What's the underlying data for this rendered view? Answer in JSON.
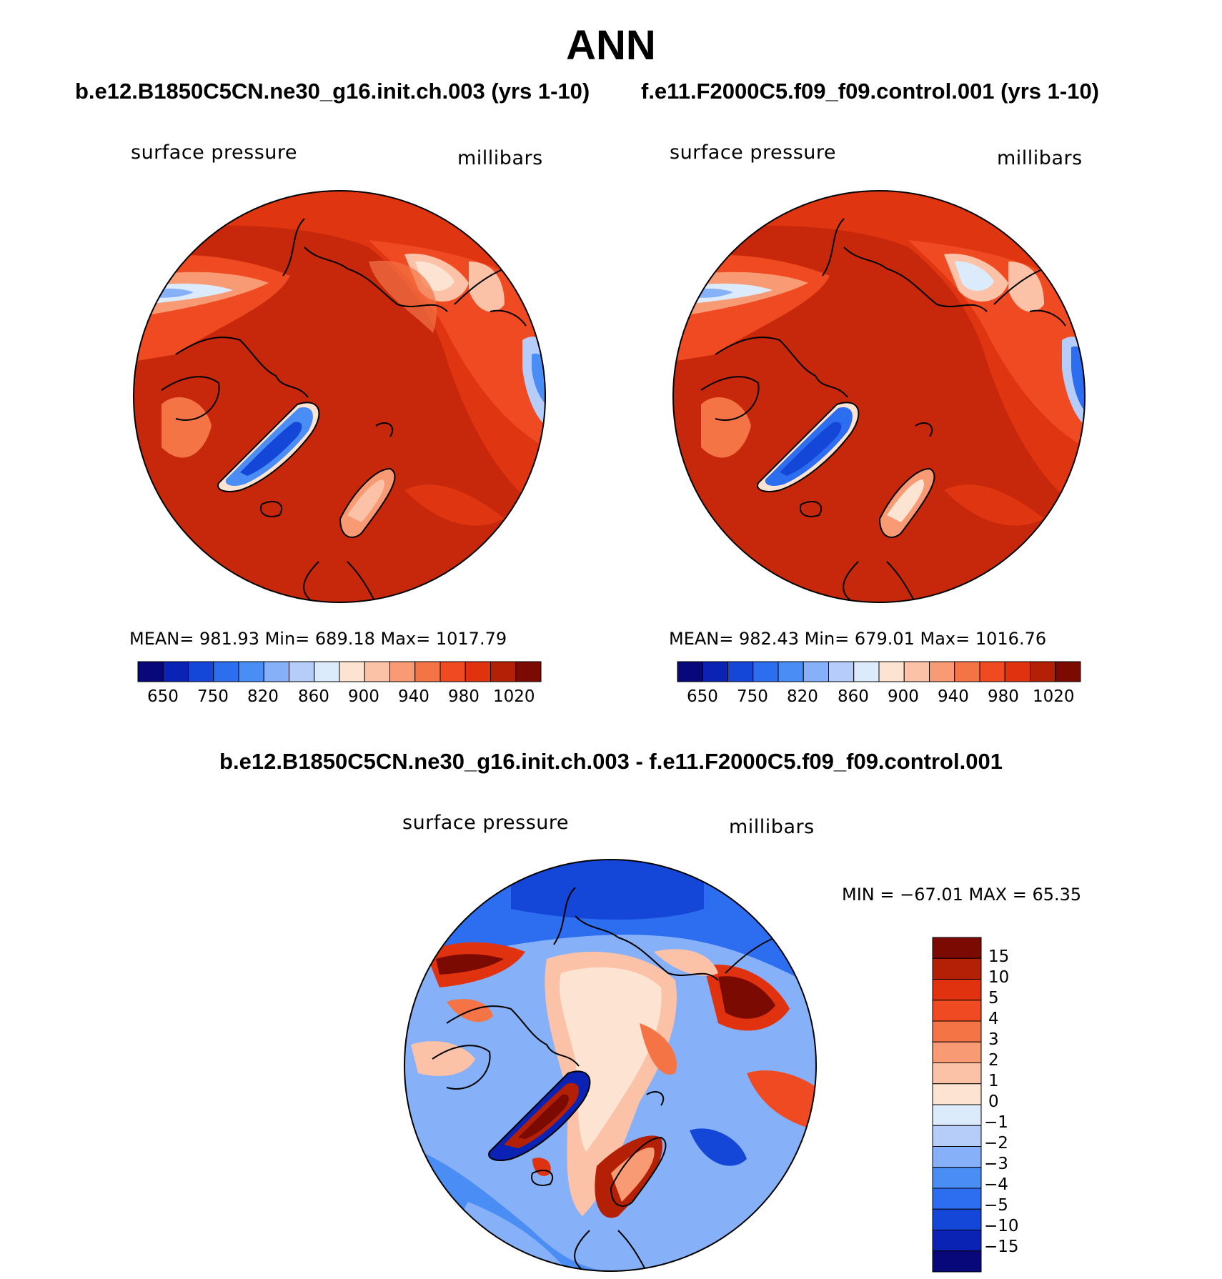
{
  "figure": {
    "title": "ANN",
    "diff_title": "b.e12.B1850C5CN.ne30_g16.init.ch.003 - f.e11.F2000C5.f09_f09.control.001"
  },
  "panels": [
    {
      "case_title": "b.e12.B1850C5CN.ne30_g16.init.ch.003 (yrs 1-10)",
      "variable": "surface pressure",
      "units": "millibars",
      "stats": "MEAN= 981.93   Min= 689.18   Max= 1017.79"
    },
    {
      "case_title": "f.e11.F2000C5.f09_f09.control.001 (yrs 1-10)",
      "variable": "surface pressure",
      "units": "millibars",
      "stats": "MEAN= 982.43   Min= 679.01   Max= 1016.76"
    }
  ],
  "diff_panel": {
    "variable": "surface pressure",
    "units": "millibars",
    "stats": "MIN = −67.01  MAX =   65.35"
  },
  "colorbar_abs": {
    "colors": [
      "#08087a",
      "#0a23b5",
      "#1446d8",
      "#2d6ef0",
      "#4a8df5",
      "#86b0f7",
      "#b5cdf8",
      "#dcebfb",
      "#fde3d2",
      "#fbc2a8",
      "#f89b74",
      "#f47446",
      "#ef4a21",
      "#e0320e",
      "#b42005",
      "#7b0a03"
    ],
    "labels": [
      "650",
      "750",
      "820",
      "860",
      "900",
      "940",
      "980",
      "1020"
    ]
  },
  "colorbar_diff": {
    "colors": [
      "#7b0a03",
      "#b42005",
      "#e0320e",
      "#ef4a21",
      "#f47446",
      "#f89b74",
      "#fbc2a8",
      "#fde3d2",
      "#dcebfb",
      "#b5cdf8",
      "#86b0f7",
      "#4a8df5",
      "#2d6ef0",
      "#1446d8",
      "#0a23b5",
      "#08087a"
    ],
    "labels": [
      "15",
      "10",
      "5",
      "4",
      "3",
      "2",
      "1",
      "0",
      "−1",
      "−2",
      "−3",
      "−4",
      "−5",
      "−10",
      "−15"
    ]
  }
}
